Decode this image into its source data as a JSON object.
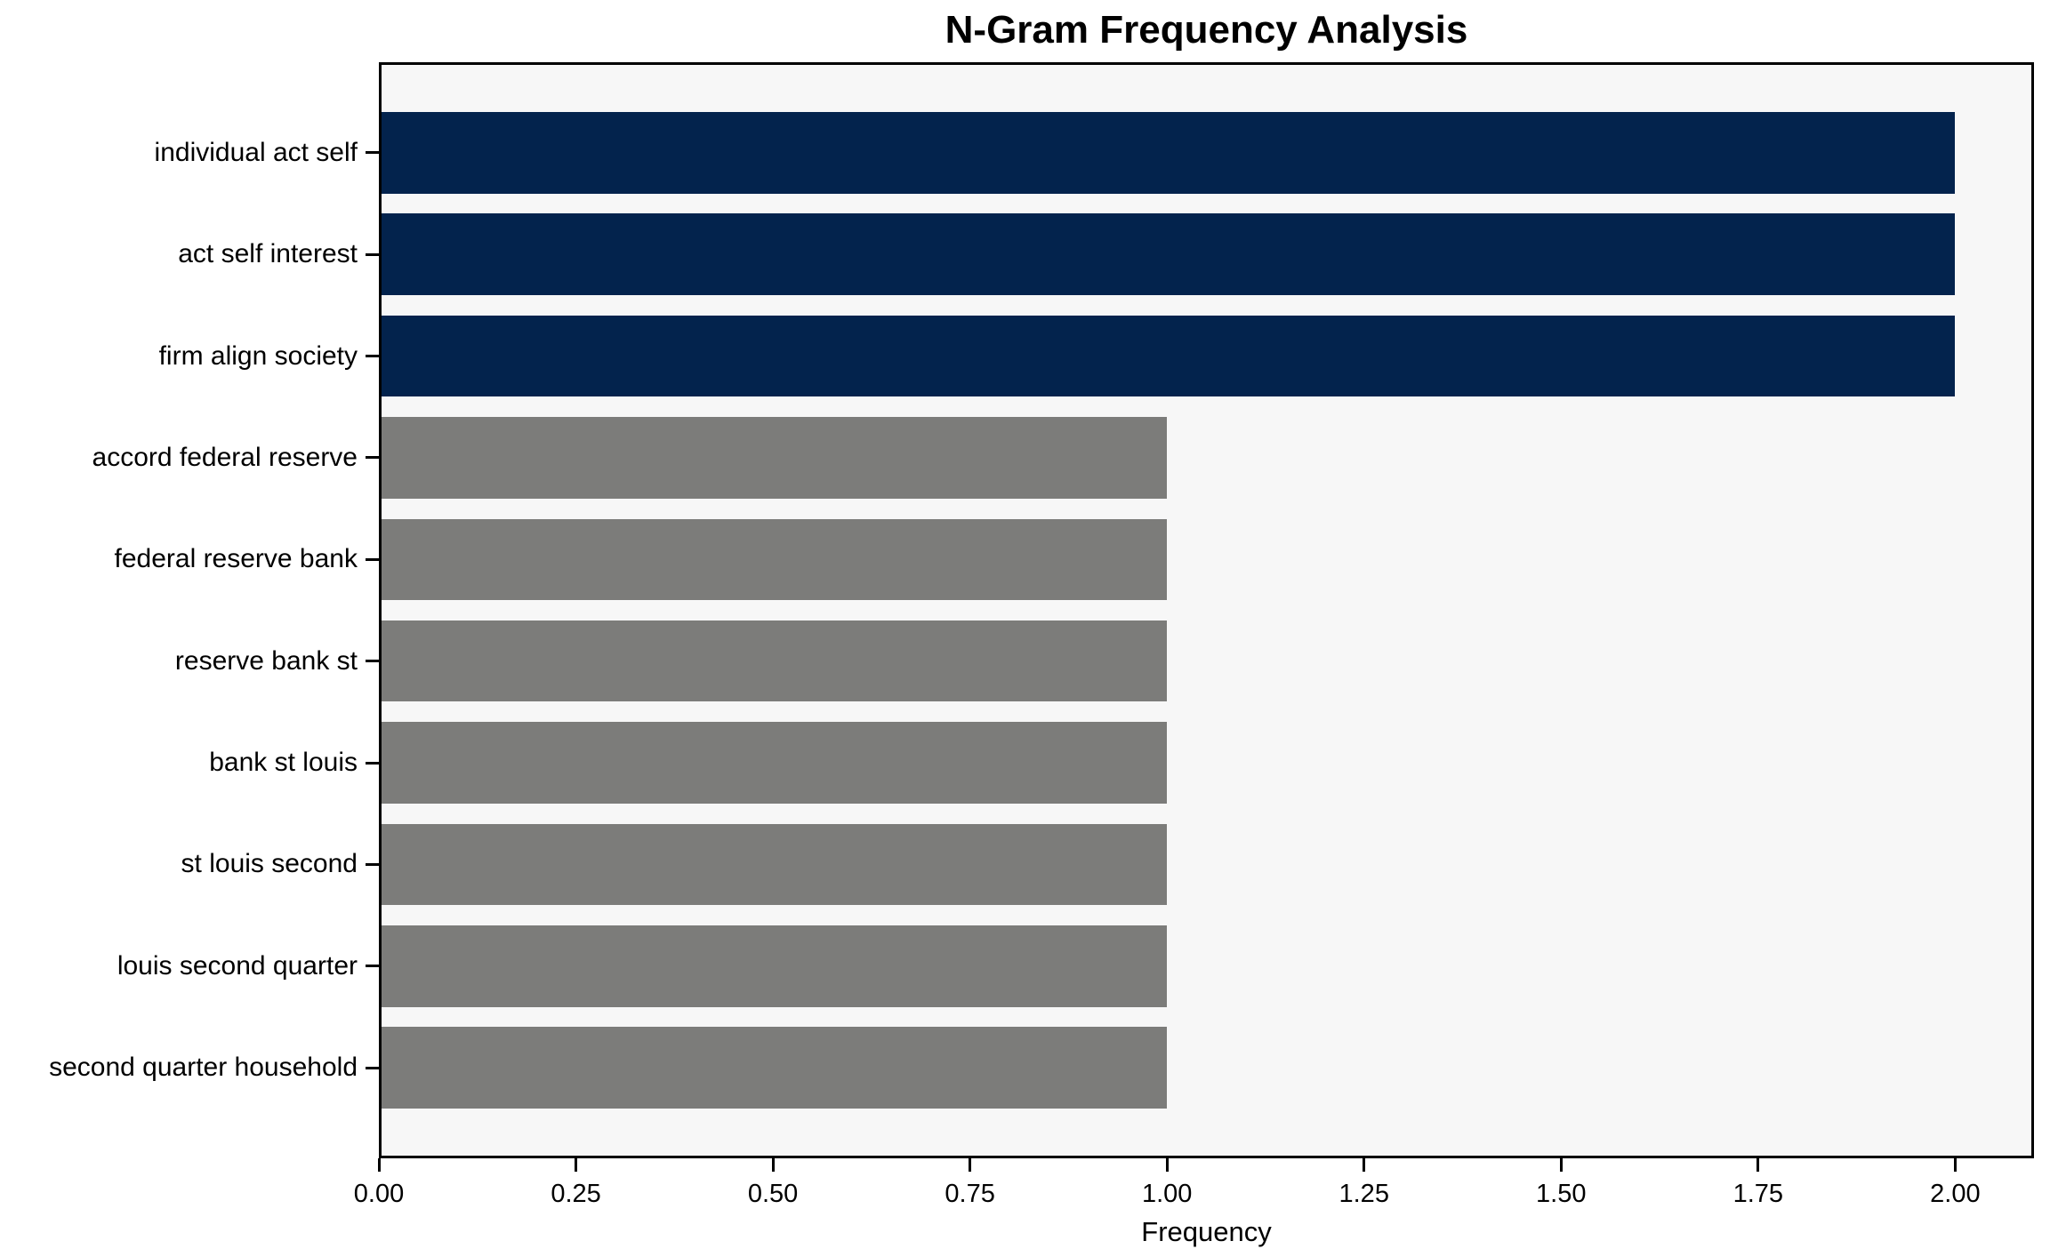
{
  "chart_data": {
    "type": "bar",
    "orientation": "horizontal",
    "title": "N-Gram Frequency Analysis",
    "xlabel": "Frequency",
    "ylabel": "",
    "categories": [
      "individual act self",
      "act self interest",
      "firm align society",
      "accord federal reserve",
      "federal reserve bank",
      "reserve bank st",
      "bank st louis",
      "st louis second",
      "louis second quarter",
      "second quarter household"
    ],
    "values": [
      2,
      2,
      2,
      1,
      1,
      1,
      1,
      1,
      1,
      1
    ],
    "bar_colors": [
      "#03234d",
      "#03234d",
      "#03234d",
      "#7c7c7a",
      "#7c7c7a",
      "#7c7c7a",
      "#7c7c7a",
      "#7c7c7a",
      "#7c7c7a",
      "#7c7c7a"
    ],
    "x_tick_values": [
      0,
      0.25,
      0.5,
      0.75,
      1.0,
      1.25,
      1.5,
      1.75,
      2.0
    ],
    "x_tick_labels": [
      "0.00",
      "0.25",
      "0.50",
      "0.75",
      "1.00",
      "1.25",
      "1.50",
      "1.75",
      "2.00"
    ],
    "xlim": [
      0,
      2.1
    ],
    "grid": false,
    "legend_position": "none",
    "colors": {
      "highlight": "#03234d",
      "base": "#7c7c7a",
      "plot_background": "#f7f7f7",
      "figure_background": "#ffffff",
      "spine": "#000000",
      "text": "#000000"
    }
  }
}
